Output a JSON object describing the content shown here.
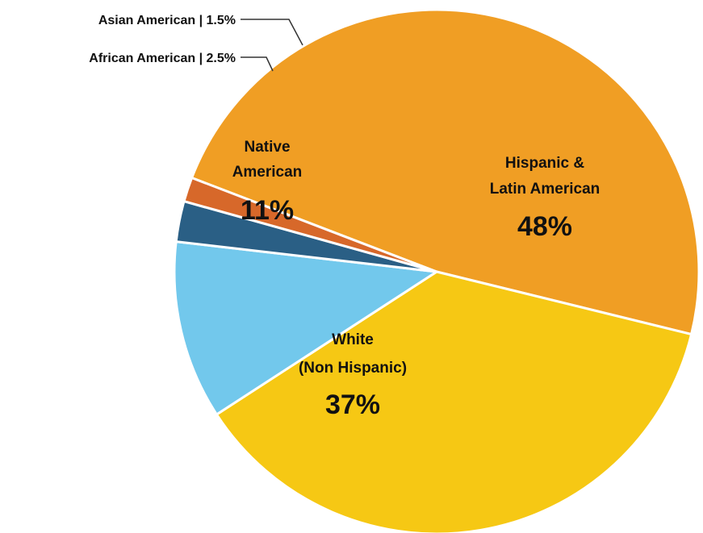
{
  "chart_data": {
    "type": "pie",
    "title": "",
    "slices": [
      {
        "name_lines": [
          "Hispanic &",
          "Latin American"
        ],
        "label": "48%",
        "value": 48,
        "color": "#F09E24"
      },
      {
        "name_lines": [
          "White",
          "(Non Hispanic)"
        ],
        "label": "37%",
        "value": 37,
        "color": "#F6C814"
      },
      {
        "name_lines": [
          "Native",
          "American"
        ],
        "label": "11%",
        "value": 11,
        "color": "#72C8EC"
      },
      {
        "name_lines": [
          "African American | 2.5%"
        ],
        "label": "",
        "value": 2.5,
        "color": "#2A5F85"
      },
      {
        "name_lines": [
          "Asian American | 1.5%"
        ],
        "label": "",
        "value": 1.5,
        "color": "#D7682A"
      }
    ]
  }
}
